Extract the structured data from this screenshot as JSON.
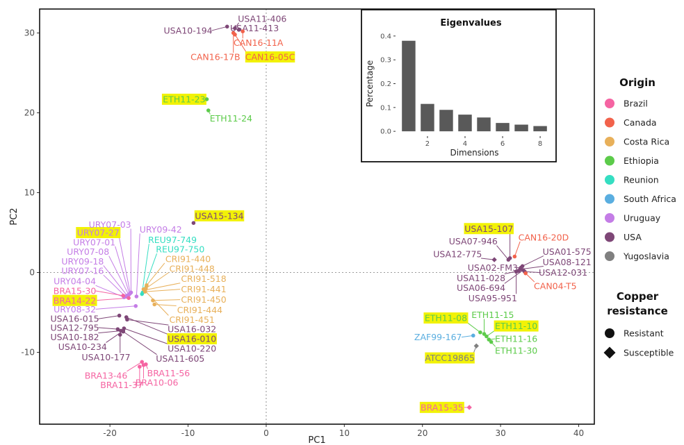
{
  "chart_data": [
    {
      "type": "scatter",
      "title": "",
      "xlabel": "PC1",
      "ylabel": "PC2",
      "xlim": [
        -29,
        42
      ],
      "ylim": [
        -19,
        33
      ],
      "xticks": [
        -20,
        -10,
        0,
        10,
        20,
        30,
        40
      ],
      "yticks": [
        -10,
        0,
        10,
        20,
        30
      ],
      "xtick_labels": [
        "-20",
        "-10",
        "0",
        "10",
        "20",
        "30",
        "40"
      ],
      "ytick_labels": [
        "-10",
        "0",
        "10",
        "20",
        "30"
      ],
      "reference_lines": {
        "x": 0,
        "y": 0,
        "style": "dotted"
      },
      "grid": false,
      "legend_placement": "right",
      "origin_legend": {
        "title": "Origin",
        "items": [
          {
            "name": "Brazil",
            "color": "#F564A2"
          },
          {
            "name": "Canada",
            "color": "#F2624B"
          },
          {
            "name": "Costa Rica",
            "color": "#E8B05A"
          },
          {
            "name": "Ethiopia",
            "color": "#5CCB4A"
          },
          {
            "name": "Reunion",
            "color": "#35DEC2"
          },
          {
            "name": "South Africa",
            "color": "#5AAEE0"
          },
          {
            "name": "Uruguay",
            "color": "#C47DE6"
          },
          {
            "name": "USA",
            "color": "#7E4777"
          },
          {
            "name": "Yugoslavia",
            "color": "#808080"
          }
        ]
      },
      "shape_legend": {
        "title_line1": "Copper",
        "title_line2": "resistance",
        "items": [
          {
            "name": "Resistant",
            "shape": "circle"
          },
          {
            "name": "Susceptible",
            "shape": "diamond"
          }
        ]
      },
      "points": [
        {
          "label": "USA10-194",
          "origin": "USA",
          "resistance": "Resistant",
          "x": -5.0,
          "y": 30.8,
          "lx": -10.0,
          "ly": 30.3
        },
        {
          "label": "USA11-406",
          "origin": "USA",
          "resistance": "Resistant",
          "x": -4.0,
          "y": 30.6,
          "lx": -0.5,
          "ly": 31.8
        },
        {
          "label": "USA11-413",
          "origin": "USA",
          "resistance": "Resistant",
          "x": -3.5,
          "y": 30.4,
          "lx": -1.5,
          "ly": 30.6
        },
        {
          "label": "CAN16-11A",
          "origin": "Canada",
          "resistance": "Resistant",
          "x": -3.0,
          "y": 30.2,
          "lx": -1.0,
          "ly": 28.8
        },
        {
          "label": "CAN16-17B",
          "origin": "Canada",
          "resistance": "Resistant",
          "x": -4.2,
          "y": 30.0,
          "lx": -6.5,
          "ly": 27.0
        },
        {
          "label": "CAN16-05C",
          "origin": "Canada",
          "resistance": "Resistant",
          "x": -4.0,
          "y": 29.8,
          "lx": 0.5,
          "ly": 27.0,
          "highlight": true
        },
        {
          "label": "ETH11-23",
          "origin": "Ethiopia",
          "resistance": "Resistant",
          "x": -7.6,
          "y": 21.7,
          "lx": -10.5,
          "ly": 21.7,
          "highlight": true
        },
        {
          "label": "ETH11-24",
          "origin": "Ethiopia",
          "resistance": "Resistant",
          "x": -7.4,
          "y": 20.3,
          "lx": -4.5,
          "ly": 19.3
        },
        {
          "label": "USA15-134",
          "origin": "USA",
          "resistance": "Resistant",
          "x": -9.3,
          "y": 6.2,
          "lx": -6.0,
          "ly": 7.1,
          "highlight": true
        },
        {
          "label": "URY07-03",
          "origin": "Uruguay",
          "resistance": "Resistant",
          "x": -17.3,
          "y": -2.5,
          "lx": -20.0,
          "ly": 6.0
        },
        {
          "label": "URY07-27",
          "origin": "Uruguay",
          "resistance": "Resistant",
          "x": -17.4,
          "y": -2.6,
          "lx": -21.5,
          "ly": 5.0,
          "highlight": true
        },
        {
          "label": "URY07-01",
          "origin": "Uruguay",
          "resistance": "Resistant",
          "x": -17.5,
          "y": -2.7,
          "lx": -22.0,
          "ly": 3.8
        },
        {
          "label": "URY07-08",
          "origin": "Uruguay",
          "resistance": "Resistant",
          "x": -17.6,
          "y": -2.8,
          "lx": -22.8,
          "ly": 2.6
        },
        {
          "label": "URY09-18",
          "origin": "Uruguay",
          "resistance": "Resistant",
          "x": -17.8,
          "y": -2.9,
          "lx": -23.5,
          "ly": 1.4
        },
        {
          "label": "URY07-16",
          "origin": "Uruguay",
          "resistance": "Resistant",
          "x": -18.0,
          "y": -3.0,
          "lx": -23.5,
          "ly": 0.2
        },
        {
          "label": "URY09-42",
          "origin": "Uruguay",
          "resistance": "Resistant",
          "x": -16.6,
          "y": -3.0,
          "lx": -13.5,
          "ly": 5.4
        },
        {
          "label": "URY04-04",
          "origin": "Uruguay",
          "resistance": "Resistant",
          "x": -18.2,
          "y": -3.1,
          "lx": -24.5,
          "ly": -1.1
        },
        {
          "label": "BRA15-30",
          "origin": "Brazil",
          "resistance": "Resistant",
          "x": -18.3,
          "y": -2.9,
          "lx": -24.5,
          "ly": -2.3
        },
        {
          "label": "BRA14-22",
          "origin": "Brazil",
          "resistance": "Resistant",
          "x": -17.6,
          "y": -3.2,
          "lx": -24.5,
          "ly": -3.5,
          "highlight": true
        },
        {
          "label": "URY08-32",
          "origin": "Uruguay",
          "resistance": "Resistant",
          "x": -16.7,
          "y": -4.2,
          "lx": -24.5,
          "ly": -4.6
        },
        {
          "label": "REU97-749",
          "origin": "Reunion",
          "resistance": "Resistant",
          "x": -15.9,
          "y": -2.7,
          "lx": -12.0,
          "ly": 4.1
        },
        {
          "label": "REU97-750",
          "origin": "Reunion",
          "resistance": "Resistant",
          "x": -15.8,
          "y": -2.5,
          "lx": -11.0,
          "ly": 2.9
        },
        {
          "label": "CRI91-440",
          "origin": "Costa Rica",
          "resistance": "Resistant",
          "x": -15.3,
          "y": -1.6,
          "lx": -10.0,
          "ly": 1.7
        },
        {
          "label": "CRI91-448",
          "origin": "Costa Rica",
          "resistance": "Resistant",
          "x": -15.4,
          "y": -2.0,
          "lx": -9.5,
          "ly": 0.5
        },
        {
          "label": "CRI91-518",
          "origin": "Costa Rica",
          "resistance": "Resistant",
          "x": -15.5,
          "y": -2.2,
          "lx": -8.0,
          "ly": -0.8
        },
        {
          "label": "CRI91-441",
          "origin": "Costa Rica",
          "resistance": "Resistant",
          "x": -15.5,
          "y": -2.4,
          "lx": -8.0,
          "ly": -2.1
        },
        {
          "label": "CRI91-450",
          "origin": "Costa Rica",
          "resistance": "Resistant",
          "x": -14.5,
          "y": -3.5,
          "lx": -8.0,
          "ly": -3.4
        },
        {
          "label": "CRI91-444",
          "origin": "Costa Rica",
          "resistance": "Resistant",
          "x": -14.3,
          "y": -4.0,
          "lx": -8.5,
          "ly": -4.7
        },
        {
          "label": "CRI91-451",
          "origin": "Costa Rica",
          "resistance": "Resistant",
          "x": -15.7,
          "y": -2.1,
          "lx": -9.5,
          "ly": -5.9
        },
        {
          "label": "USA16-015",
          "origin": "USA",
          "resistance": "Resistant",
          "x": -18.8,
          "y": -5.4,
          "lx": -24.5,
          "ly": -5.8
        },
        {
          "label": "USA12-795",
          "origin": "USA",
          "resistance": "Resistant",
          "x": -19.0,
          "y": -7.1,
          "lx": -24.5,
          "ly": -6.9
        },
        {
          "label": "USA10-182",
          "origin": "USA",
          "resistance": "Resistant",
          "x": -18.6,
          "y": -7.3,
          "lx": -24.5,
          "ly": -8.1
        },
        {
          "label": "USA10-234",
          "origin": "USA",
          "resistance": "Resistant",
          "x": -18.3,
          "y": -7.3,
          "lx": -23.5,
          "ly": -9.3
        },
        {
          "label": "USA10-177",
          "origin": "USA",
          "resistance": "Resistant",
          "x": -18.7,
          "y": -7.8,
          "lx": -20.5,
          "ly": -10.6
        },
        {
          "label": "USA16-032",
          "origin": "USA",
          "resistance": "Resistant",
          "x": -17.8,
          "y": -5.9,
          "lx": -9.5,
          "ly": -7.1
        },
        {
          "label": "USA16-010",
          "origin": "USA",
          "resistance": "Resistant",
          "x": -17.9,
          "y": -5.6,
          "lx": -9.5,
          "ly": -8.3,
          "highlight": true
        },
        {
          "label": "USA10-220",
          "origin": "USA",
          "resistance": "Resistant",
          "x": -18.2,
          "y": -7.0,
          "lx": -9.5,
          "ly": -9.5
        },
        {
          "label": "USA11-605",
          "origin": "USA",
          "resistance": "Resistant",
          "x": -18.3,
          "y": -7.4,
          "lx": -11.0,
          "ly": -10.8
        },
        {
          "label": "BRA13-46",
          "origin": "Brazil",
          "resistance": "Resistant",
          "x": -15.9,
          "y": -11.2,
          "lx": -20.5,
          "ly": -12.9
        },
        {
          "label": "BRA11-56",
          "origin": "Brazil",
          "resistance": "Resistant",
          "x": -15.4,
          "y": -11.5,
          "lx": -12.5,
          "ly": -12.6
        },
        {
          "label": "BRA11-37",
          "origin": "Brazil",
          "resistance": "Resistant",
          "x": -16.2,
          "y": -11.8,
          "lx": -18.5,
          "ly": -14.1
        },
        {
          "label": "BRA10-06",
          "origin": "Brazil",
          "resistance": "Resistant",
          "x": -15.7,
          "y": -11.6,
          "lx": -14.0,
          "ly": -13.8
        },
        {
          "label": "USA15-107",
          "origin": "USA",
          "resistance": "Resistant",
          "x": 31.2,
          "y": 1.8,
          "lx": 28.5,
          "ly": 5.5,
          "highlight": true
        },
        {
          "label": "USA07-946",
          "origin": "USA",
          "resistance": "Resistant",
          "x": 31.0,
          "y": 1.6,
          "lx": 26.5,
          "ly": 3.9
        },
        {
          "label": "CAN16-20D",
          "origin": "Canada",
          "resistance": "Resistant",
          "x": 31.8,
          "y": 2.0,
          "lx": 35.5,
          "ly": 4.4
        },
        {
          "label": "USA12-775",
          "origin": "USA",
          "resistance": "Susceptible",
          "x": 29.2,
          "y": 1.6,
          "lx": 24.5,
          "ly": 2.3
        },
        {
          "label": "USA01-575",
          "origin": "USA",
          "resistance": "Resistant",
          "x": 32.8,
          "y": 0.8,
          "lx": 38.5,
          "ly": 2.6
        },
        {
          "label": "USA08-121",
          "origin": "USA",
          "resistance": "Resistant",
          "x": 32.5,
          "y": 0.4,
          "lx": 38.5,
          "ly": 1.3
        },
        {
          "label": "USA02-FM3",
          "origin": "USA",
          "resistance": "Resistant",
          "x": 32.6,
          "y": 0.6,
          "lx": 29.0,
          "ly": 0.6
        },
        {
          "label": "USA11-028",
          "origin": "USA",
          "resistance": "Resistant",
          "x": 32.3,
          "y": 0.2,
          "lx": 27.5,
          "ly": -0.7
        },
        {
          "label": "USA06-694",
          "origin": "USA",
          "resistance": "Resistant",
          "x": 32.9,
          "y": 0.3,
          "lx": 27.5,
          "ly": -1.9
        },
        {
          "label": "USA12-031",
          "origin": "USA",
          "resistance": "Resistant",
          "x": 33.1,
          "y": 0.1,
          "lx": 38.0,
          "ly": 0.0
        },
        {
          "label": "CAN04-T5",
          "origin": "Canada",
          "resistance": "Resistant",
          "x": 33.2,
          "y": -0.1,
          "lx": 37.0,
          "ly": -1.7
        },
        {
          "label": "USA95-951",
          "origin": "USA",
          "resistance": "Resistant",
          "x": 32.0,
          "y": 0.1,
          "lx": 29.0,
          "ly": -3.2
        },
        {
          "label": "ETH11-08",
          "origin": "Ethiopia",
          "resistance": "Resistant",
          "x": 27.4,
          "y": -7.5,
          "lx": 23.0,
          "ly": -5.7,
          "highlight": true
        },
        {
          "label": "ETH11-15",
          "origin": "Ethiopia",
          "resistance": "Resistant",
          "x": 27.9,
          "y": -7.7,
          "lx": 29.0,
          "ly": -5.3
        },
        {
          "label": "ETH11-10",
          "origin": "Ethiopia",
          "resistance": "Resistant",
          "x": 28.2,
          "y": -8.0,
          "lx": 32.0,
          "ly": -6.7,
          "highlight": true
        },
        {
          "label": "ETH11-16",
          "origin": "Ethiopia",
          "resistance": "Resistant",
          "x": 28.5,
          "y": -8.4,
          "lx": 32.0,
          "ly": -8.3
        },
        {
          "label": "ETH11-30",
          "origin": "Ethiopia",
          "resistance": "Resistant",
          "x": 28.8,
          "y": -8.7,
          "lx": 32.0,
          "ly": -9.8
        },
        {
          "label": "ZAF99-167",
          "origin": "South Africa",
          "resistance": "Resistant",
          "x": 26.5,
          "y": -7.9,
          "lx": 22.0,
          "ly": -8.1
        },
        {
          "label": "ATCC19865",
          "origin": "Yugoslavia",
          "resistance": "Susceptible",
          "x": 26.9,
          "y": -9.2,
          "lx": 23.5,
          "ly": -10.7,
          "highlight": true
        },
        {
          "label": "BRA15-35",
          "origin": "Brazil",
          "resistance": "Susceptible",
          "x": 26.0,
          "y": -16.9,
          "lx": 22.5,
          "ly": -16.9,
          "highlight": true
        }
      ]
    },
    {
      "type": "bar",
      "title": "Eigenvalues",
      "xlabel": "Dimensions",
      "ylabel": "Percentage",
      "categories": [
        1,
        2,
        3,
        4,
        5,
        6,
        7,
        8
      ],
      "values": [
        0.38,
        0.115,
        0.09,
        0.07,
        0.058,
        0.035,
        0.028,
        0.022
      ],
      "ylim": [
        0,
        0.4
      ],
      "yticks": [
        0.0,
        0.1,
        0.2,
        0.3,
        0.4
      ],
      "ytick_labels": [
        "0.0",
        "0.1",
        "0.2",
        "0.3",
        "0.4"
      ],
      "xticks": [
        2,
        4,
        6,
        8
      ],
      "xtick_labels": [
        "2",
        "4",
        "6",
        "8"
      ],
      "bar_color": "#595959"
    }
  ]
}
